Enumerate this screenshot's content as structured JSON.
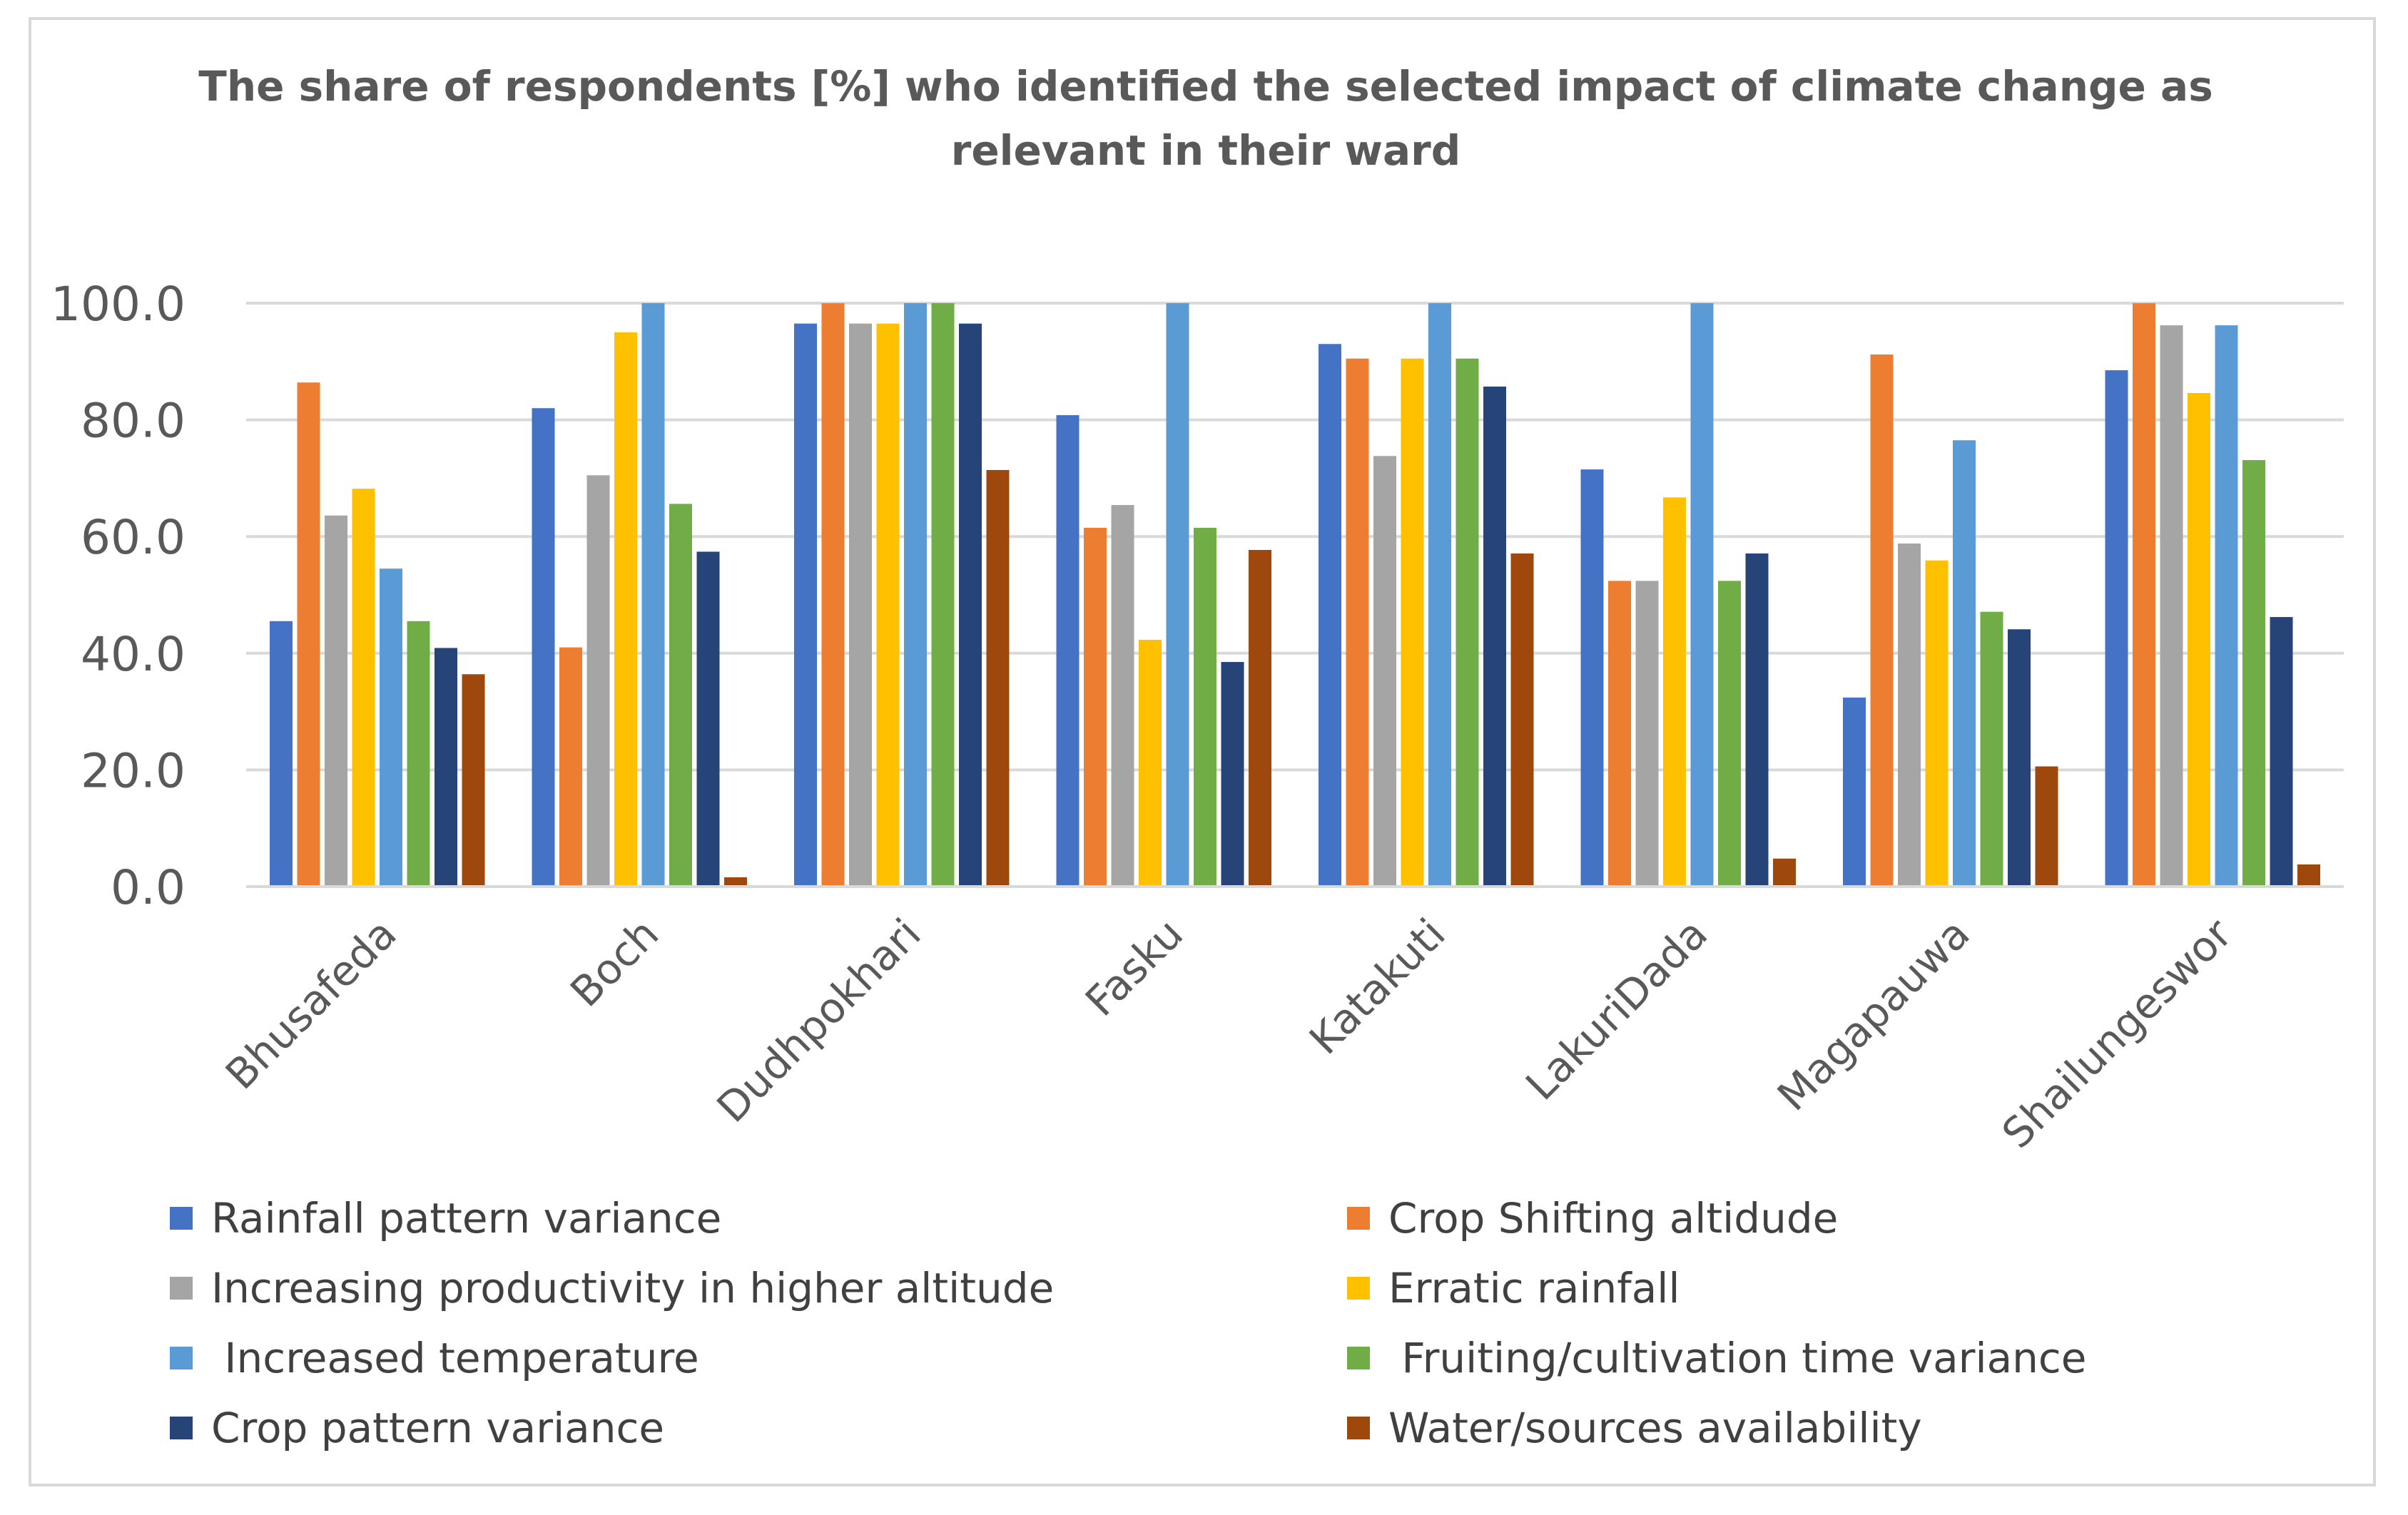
{
  "chart_data": {
    "type": "bar",
    "title": "The share of respondents [%] who identified the selected impact of climate change as relevant in their ward",
    "xlabel": "",
    "ylabel": "",
    "ylim": [
      0,
      100
    ],
    "yticks": [
      "0.0",
      "20.0",
      "40.0",
      "60.0",
      "80.0",
      "100.0"
    ],
    "ytick_values": [
      0,
      20,
      40,
      60,
      80,
      100
    ],
    "grid": true,
    "legend_position": "bottom",
    "categories": [
      "Bhusafeda",
      "Boch",
      "Dudhpokhari",
      "Fasku",
      "Katakuti",
      "LakuriDada",
      "Magapauwa",
      "Shailungeswor"
    ],
    "series": [
      {
        "name": "Rainfall pattern variance",
        "color": "#4472c4",
        "values": [
          45.5,
          82.0,
          96.5,
          80.8,
          93.0,
          71.5,
          32.4,
          88.5
        ]
      },
      {
        "name": "Crop Shifting altidude",
        "color": "#ed7d31",
        "values": [
          86.4,
          41.0,
          100.0,
          61.5,
          90.5,
          52.4,
          91.2,
          100.0
        ]
      },
      {
        "name": "Increasing productivity in higher altitude",
        "color": "#a5a5a5",
        "values": [
          63.6,
          70.5,
          96.5,
          65.4,
          73.8,
          52.4,
          58.8,
          96.2
        ]
      },
      {
        "name": "Erratic rainfall",
        "color": "#ffc000",
        "values": [
          68.2,
          95.0,
          96.5,
          42.3,
          90.5,
          66.7,
          55.9,
          84.6
        ]
      },
      {
        "name": " Increased temperature",
        "color": "#5b9bd5",
        "values": [
          54.5,
          100.0,
          100.0,
          100.0,
          100.0,
          100.0,
          76.5,
          96.2
        ]
      },
      {
        "name": " Fruiting/cultivation time variance",
        "color": "#70ad47",
        "values": [
          45.5,
          65.6,
          100.0,
          61.5,
          90.5,
          52.4,
          47.1,
          73.1
        ]
      },
      {
        "name": "Crop pattern variance",
        "color": "#264478",
        "values": [
          40.9,
          57.4,
          96.5,
          38.5,
          85.7,
          57.1,
          44.1,
          46.2
        ]
      },
      {
        "name": "Water/sources availability",
        "color": "#9e480e",
        "values": [
          36.4,
          1.6,
          71.4,
          57.7,
          57.1,
          4.8,
          20.6,
          3.8
        ]
      }
    ]
  }
}
